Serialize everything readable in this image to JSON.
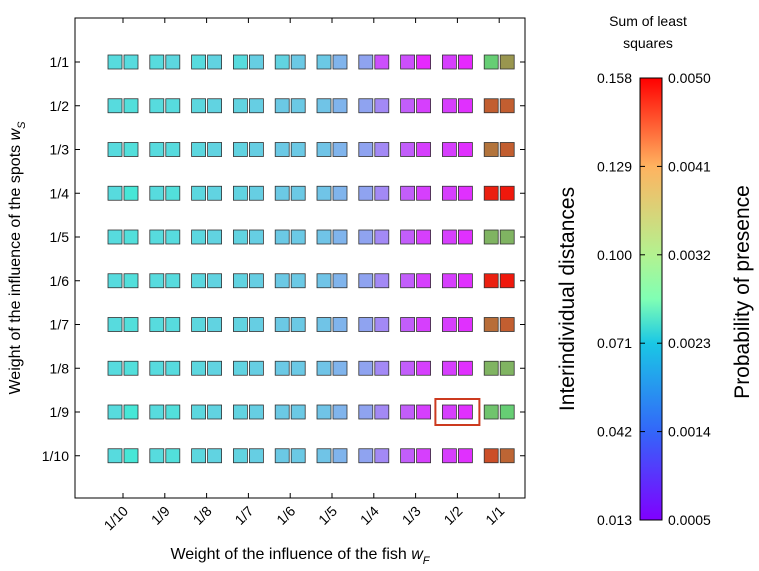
{
  "chart_data": {
    "type": "heatmap",
    "xlabel": "Weight of the influence of the fish",
    "xlabel_symbol": "w",
    "xlabel_sub": "F",
    "ylabel": "Weight of the influence of the spots",
    "ylabel_symbol": "w",
    "ylabel_sub": "S",
    "x_categories": [
      "1/10",
      "1/9",
      "1/8",
      "1/7",
      "1/6",
      "1/5",
      "1/4",
      "1/3",
      "1/2",
      "1/1"
    ],
    "y_categories": [
      "1/1",
      "1/2",
      "1/3",
      "1/4",
      "1/5",
      "1/6",
      "1/7",
      "1/8",
      "1/9",
      "1/10"
    ],
    "cell_note": "each cell shows two squares: left = interindividual distances, right = probability of presence (colour-scale fraction 0-1)",
    "left_values": [
      [
        0.33,
        0.33,
        0.33,
        0.33,
        0.31,
        0.29,
        0.22,
        0.1,
        0.08,
        0.7
      ],
      [
        0.33,
        0.33,
        0.32,
        0.31,
        0.29,
        0.28,
        0.22,
        0.12,
        0.08,
        0.88
      ],
      [
        0.33,
        0.33,
        0.32,
        0.31,
        0.29,
        0.28,
        0.22,
        0.12,
        0.08,
        0.85
      ],
      [
        0.33,
        0.33,
        0.32,
        0.31,
        0.29,
        0.28,
        0.22,
        0.12,
        0.08,
        0.96
      ],
      [
        0.33,
        0.33,
        0.32,
        0.31,
        0.29,
        0.28,
        0.22,
        0.12,
        0.08,
        0.75
      ],
      [
        0.33,
        0.33,
        0.32,
        0.31,
        0.29,
        0.28,
        0.22,
        0.12,
        0.08,
        0.96
      ],
      [
        0.33,
        0.33,
        0.32,
        0.31,
        0.29,
        0.28,
        0.22,
        0.12,
        0.08,
        0.86
      ],
      [
        0.33,
        0.33,
        0.32,
        0.31,
        0.29,
        0.28,
        0.22,
        0.12,
        0.08,
        0.75
      ],
      [
        0.33,
        0.33,
        0.32,
        0.31,
        0.29,
        0.28,
        0.22,
        0.12,
        0.08,
        0.72
      ],
      [
        0.33,
        0.33,
        0.32,
        0.31,
        0.29,
        0.28,
        0.22,
        0.12,
        0.08,
        0.9
      ]
    ],
    "right_values": [
      [
        0.33,
        0.32,
        0.31,
        0.3,
        0.29,
        0.25,
        0.1,
        0.05,
        0.05,
        0.8
      ],
      [
        0.34,
        0.33,
        0.31,
        0.3,
        0.29,
        0.25,
        0.18,
        0.08,
        0.06,
        0.88
      ],
      [
        0.34,
        0.33,
        0.31,
        0.3,
        0.29,
        0.25,
        0.18,
        0.08,
        0.06,
        0.88
      ],
      [
        0.36,
        0.34,
        0.31,
        0.3,
        0.29,
        0.25,
        0.18,
        0.08,
        0.06,
        0.97
      ],
      [
        0.34,
        0.33,
        0.31,
        0.3,
        0.29,
        0.25,
        0.18,
        0.08,
        0.06,
        0.75
      ],
      [
        0.34,
        0.33,
        0.31,
        0.3,
        0.29,
        0.25,
        0.18,
        0.08,
        0.06,
        0.97
      ],
      [
        0.34,
        0.33,
        0.31,
        0.3,
        0.29,
        0.25,
        0.18,
        0.08,
        0.06,
        0.88
      ],
      [
        0.34,
        0.33,
        0.31,
        0.3,
        0.29,
        0.25,
        0.18,
        0.08,
        0.06,
        0.75
      ],
      [
        0.36,
        0.34,
        0.31,
        0.3,
        0.29,
        0.25,
        0.18,
        0.08,
        0.06,
        0.7
      ],
      [
        0.36,
        0.34,
        0.31,
        0.3,
        0.29,
        0.25,
        0.18,
        0.08,
        0.06,
        0.87
      ]
    ],
    "highlight": {
      "x": "1/2",
      "y": "1/9",
      "color": "#cc3a1f"
    },
    "colorbar": {
      "title": "Sum of least squares",
      "left_label": "Interindividual distances",
      "right_label": "Probability of presence",
      "left_ticks": [
        "0.158",
        "0.129",
        "0.100",
        "0.071",
        "0.042",
        "0.013"
      ],
      "right_ticks": [
        "0.0050",
        "0.0041",
        "0.0032",
        "0.0023",
        "0.0014",
        "0.0005"
      ],
      "left_range": [
        0.013,
        0.158
      ],
      "right_range": [
        0.0005,
        0.005
      ],
      "colormap": "rainbow"
    }
  },
  "colors": {
    "axis": "#000000",
    "cell_border": "#333333"
  }
}
